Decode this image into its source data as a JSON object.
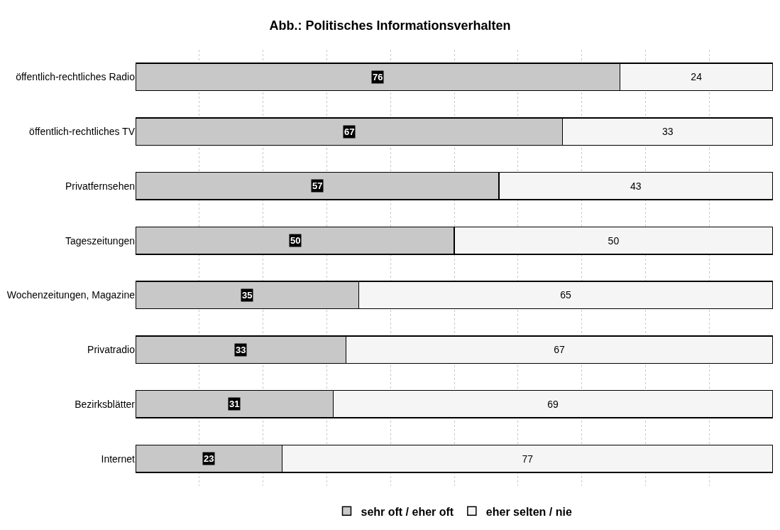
{
  "chart_data": {
    "type": "bar",
    "orientation": "horizontal",
    "stacked": true,
    "title": "Abb.: Politisches Informationsverhalten",
    "categories": [
      "öffentlich-rechtliches Radio",
      "öffentlich-rechtliches TV",
      "Privatfernsehen",
      "Tageszeitungen",
      "Wochenzeitungen, Magazine",
      "Privatradio",
      "Bezirksblätter",
      "Internet"
    ],
    "series": [
      {
        "name": "sehr oft / eher oft",
        "color": "#c8c8c8",
        "values": [
          76,
          67,
          57,
          50,
          35,
          33,
          31,
          23
        ]
      },
      {
        "name": "eher selten / nie",
        "color": "#f5f5f5",
        "values": [
          24,
          33,
          43,
          50,
          65,
          67,
          69,
          77
        ]
      }
    ],
    "xlim": [
      0,
      100
    ],
    "xticks": [
      {
        "value": 10,
        "label": null
      },
      {
        "value": 20,
        "label": null
      },
      {
        "value": 30,
        "label": null
      },
      {
        "value": 40,
        "label": null
      },
      {
        "value": 50,
        "label": null
      },
      {
        "value": 60,
        "label": null
      },
      {
        "value": 70,
        "label": null
      },
      {
        "value": 80,
        "label": null
      },
      {
        "value": 90,
        "label": null
      }
    ],
    "tick_labels": "y",
    "grid": "x",
    "legend": "bottom",
    "data_labels": true
  }
}
